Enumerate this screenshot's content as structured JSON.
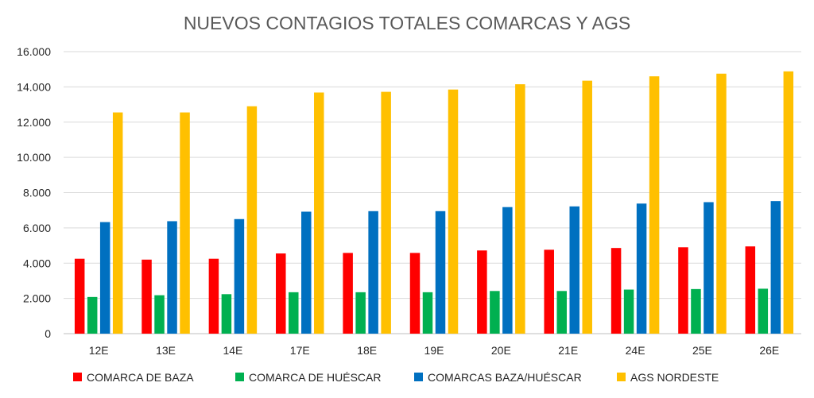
{
  "chart_data": {
    "type": "bar",
    "title": "NUEVOS CONTAGIOS TOTALES COMARCAS Y AGS",
    "categories": [
      "12E",
      "13E",
      "14E",
      "17E",
      "18E",
      "19E",
      "20E",
      "21E",
      "24E",
      "25E",
      "26E"
    ],
    "series": [
      {
        "name": "COMARCA DE BAZA",
        "color": "#ff0000",
        "values": [
          4250,
          4200,
          4250,
          4550,
          4580,
          4580,
          4720,
          4760,
          4860,
          4900,
          4950
        ]
      },
      {
        "name": "COMARCA DE HUÉSCAR",
        "color": "#00b050",
        "values": [
          2080,
          2180,
          2240,
          2350,
          2350,
          2350,
          2420,
          2420,
          2500,
          2530,
          2550
        ]
      },
      {
        "name": "COMARCAS BAZA/HUÉSCAR",
        "color": "#0070c0",
        "values": [
          6330,
          6380,
          6500,
          6920,
          6950,
          6950,
          7180,
          7220,
          7380,
          7460,
          7520
        ]
      },
      {
        "name": "AGS NORDESTE",
        "color": "#ffc000",
        "values": [
          12550,
          12550,
          12900,
          13680,
          13720,
          13850,
          14150,
          14350,
          14600,
          14750,
          14880
        ]
      }
    ],
    "yticks": [
      "0",
      "2.000",
      "4.000",
      "6.000",
      "8.000",
      "10.000",
      "12.000",
      "14.000",
      "16.000"
    ],
    "ylim": [
      0,
      16000
    ],
    "grid": true,
    "legend_position": "bottom",
    "xlabel": "",
    "ylabel": ""
  }
}
